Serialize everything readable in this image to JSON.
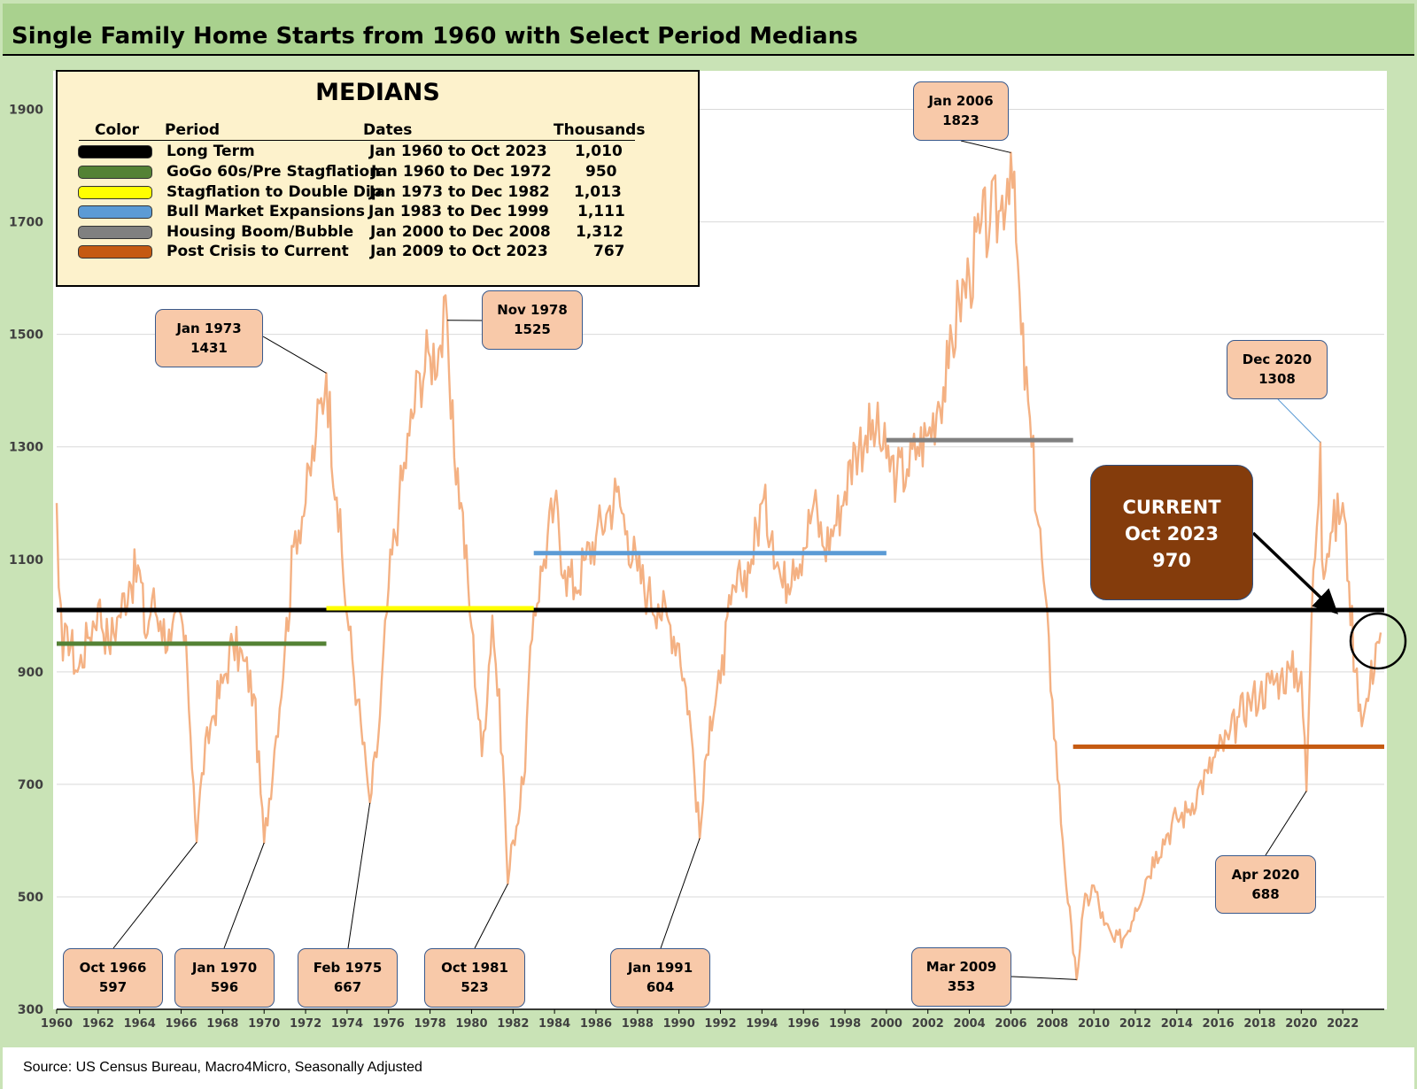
{
  "title": "Single Family Home Starts from 1960 with Select Period Medians",
  "source": "Source: US Census Bureau, Macro4Micro, Seasonally Adjusted",
  "legend": {
    "title": "MEDIANS",
    "headers": {
      "color": "Color",
      "period": "Period",
      "dates": "Dates",
      "thousands": "Thousands"
    },
    "rows": [
      {
        "color": "#000000",
        "period": "Long Term",
        "dates": "Jan 1960 to Oct 2023",
        "thousands": "1,010"
      },
      {
        "color": "#548235",
        "period": "GoGo 60s/Pre Stagflation",
        "dates": "Jan 1960 to Dec 1972",
        "thousands": "950"
      },
      {
        "color": "#ffff00",
        "period": "Stagflation to Double Dip",
        "dates": "Jan 1973 to Dec 1982",
        "thousands": "1,013"
      },
      {
        "color": "#5b9bd5",
        "period": "Bull Market Expansions",
        "dates": "Jan 1983 to Dec 1999",
        "thousands": "1,111"
      },
      {
        "color": "#808080",
        "period": "Housing Boom/Bubble",
        "dates": "Jan 2000 to Dec 2008",
        "thousands": "1,312"
      },
      {
        "color": "#c55a11",
        "period": "Post Crisis to Current",
        "dates": "Jan 2009 to Oct 2023",
        "thousands": "767"
      }
    ]
  },
  "current": {
    "label": "CURRENT",
    "date": "Oct 2023",
    "value": "970"
  },
  "callouts": [
    {
      "line1": "Jan 1973",
      "line2": "1431"
    },
    {
      "line1": "Nov 1978",
      "line2": "1525"
    },
    {
      "line1": "Jan 2006",
      "line2": "1823"
    },
    {
      "line1": "Dec 2020",
      "line2": "1308"
    },
    {
      "line1": "Oct 1966",
      "line2": "597"
    },
    {
      "line1": "Jan 1970",
      "line2": "596"
    },
    {
      "line1": "Feb 1975",
      "line2": "667"
    },
    {
      "line1": "Oct 1981",
      "line2": "523"
    },
    {
      "line1": "Jan 1991",
      "line2": "604"
    },
    {
      "line1": "Mar 2009",
      "line2": "353"
    },
    {
      "line1": "Apr 2020",
      "line2": "688"
    }
  ],
  "colors": {
    "series": "#f4b183",
    "frame": "#c9e3b6",
    "title_bar": "#a9d18e",
    "callout_fill": "#f8c9a9",
    "current_fill": "#843c0c"
  },
  "chart_data": {
    "type": "line",
    "title": "Single Family Home Starts from 1960 with Select Period Medians",
    "xlabel": "",
    "ylabel": "",
    "ylim": [
      300,
      2000
    ],
    "xlim": [
      1960,
      2024
    ],
    "y_ticks": [
      300,
      500,
      700,
      900,
      1100,
      1300,
      1500,
      1700,
      1900
    ],
    "x_ticks": [
      1960,
      1962,
      1964,
      1966,
      1968,
      1970,
      1972,
      1974,
      1976,
      1978,
      1980,
      1982,
      1984,
      1986,
      1988,
      1990,
      1992,
      1994,
      1996,
      1998,
      2000,
      2002,
      2004,
      2006,
      2008,
      2010,
      2012,
      2014,
      2016,
      2018,
      2020,
      2022
    ],
    "median_lines": [
      {
        "name": "Long Term",
        "value": 1010,
        "from": 1960,
        "to": 2024,
        "color": "#000000"
      },
      {
        "name": "GoGo 60s/Pre Stagflation",
        "value": 950,
        "from": 1960,
        "to": 1973,
        "color": "#548235"
      },
      {
        "name": "Stagflation to Double Dip",
        "value": 1013,
        "from": 1973,
        "to": 1983,
        "color": "#ffff00"
      },
      {
        "name": "Bull Market Expansions",
        "value": 1111,
        "from": 1983,
        "to": 2000,
        "color": "#5b9bd5"
      },
      {
        "name": "Housing Boom/Bubble",
        "value": 1312,
        "from": 2000,
        "to": 2009,
        "color": "#808080"
      },
      {
        "name": "Post Crisis to Current",
        "value": 767,
        "from": 2009,
        "to": 2024,
        "color": "#c55a11"
      }
    ],
    "series": [
      {
        "name": "Single Family Home Starts (thousands, SAAR)",
        "x": [
          1960.0,
          1960.1,
          1960.3,
          1960.5,
          1961.0,
          1961.5,
          1962.0,
          1962.5,
          1963.0,
          1963.5,
          1964.0,
          1964.3,
          1964.6,
          1965.0,
          1965.5,
          1966.0,
          1966.3,
          1966.6,
          1966.75,
          1967.0,
          1967.5,
          1968.0,
          1968.5,
          1969.0,
          1969.5,
          1970.0,
          1970.5,
          1971.0,
          1971.5,
          1972.0,
          1972.5,
          1973.0,
          1973.5,
          1974.0,
          1974.5,
          1975.0,
          1975.1,
          1975.5,
          1976.0,
          1976.5,
          1977.0,
          1977.5,
          1978.0,
          1978.5,
          1978.83,
          1979.0,
          1979.5,
          1980.0,
          1980.5,
          1981.0,
          1981.5,
          1981.75,
          1982.0,
          1982.5,
          1983.0,
          1983.5,
          1984.0,
          1984.5,
          1985.0,
          1985.5,
          1986.0,
          1986.5,
          1987.0,
          1987.5,
          1988.0,
          1988.5,
          1989.0,
          1989.5,
          1990.0,
          1990.5,
          1991.0,
          1991.5,
          1992.0,
          1992.5,
          1993.0,
          1993.5,
          1994.0,
          1994.5,
          1995.0,
          1995.5,
          1996.0,
          1996.5,
          1997.0,
          1997.5,
          1998.0,
          1998.5,
          1999.0,
          1999.5,
          2000.0,
          2000.5,
          2001.0,
          2001.5,
          2002.0,
          2002.5,
          2003.0,
          2003.5,
          2004.0,
          2004.5,
          2005.0,
          2005.5,
          2006.0,
          2006.5,
          2007.0,
          2007.5,
          2008.0,
          2008.5,
          2009.0,
          2009.17,
          2009.5,
          2010.0,
          2010.5,
          2011.0,
          2011.5,
          2012.0,
          2012.5,
          2013.0,
          2013.5,
          2014.0,
          2014.5,
          2015.0,
          2015.5,
          2016.0,
          2016.5,
          2017.0,
          2017.5,
          2018.0,
          2018.5,
          2019.0,
          2019.5,
          2020.0,
          2020.25,
          2020.5,
          2020.92,
          2021.0,
          2021.5,
          2022.0,
          2022.3,
          2022.6,
          2023.0,
          2023.3,
          2023.6,
          2023.83
        ],
        "values": [
          1200,
          1050,
          920,
          980,
          900,
          960,
          1020,
          950,
          1000,
          1060,
          1080,
          960,
          1030,
          990,
          950,
          1000,
          900,
          700,
          597,
          720,
          820,
          880,
          950,
          920,
          860,
          596,
          760,
          940,
          1150,
          1200,
          1320,
          1431,
          1210,
          1000,
          850,
          700,
          667,
          780,
          1050,
          1200,
          1320,
          1430,
          1460,
          1480,
          1525,
          1350,
          1200,
          980,
          750,
          1000,
          750,
          523,
          600,
          700,
          1010,
          1100,
          1200,
          1080,
          1050,
          1100,
          1140,
          1180,
          1220,
          1150,
          1080,
          1040,
          1020,
          990,
          950,
          830,
          604,
          820,
          880,
          1020,
          1060,
          1100,
          1200,
          1150,
          1050,
          1100,
          1120,
          1200,
          1120,
          1160,
          1220,
          1300,
          1320,
          1330,
          1280,
          1250,
          1260,
          1300,
          1320,
          1380,
          1440,
          1560,
          1600,
          1680,
          1700,
          1720,
          1823,
          1500,
          1300,
          1100,
          850,
          600,
          400,
          353,
          480,
          520,
          450,
          420,
          430,
          480,
          530,
          580,
          610,
          640,
          650,
          690,
          720,
          760,
          780,
          820,
          850,
          860,
          880,
          890,
          900,
          900,
          688,
          1000,
          1308,
          1100,
          1150,
          1200,
          1060,
          900,
          820,
          870,
          950,
          970
        ]
      }
    ]
  }
}
